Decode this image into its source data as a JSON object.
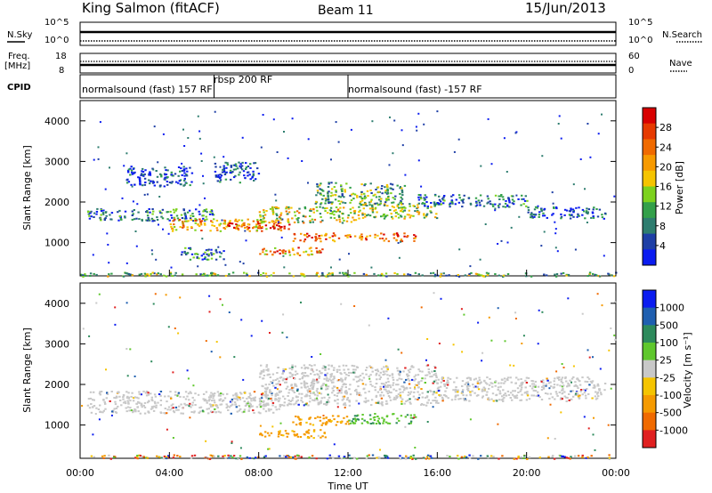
{
  "header": {
    "station": "King Salmon (fitACF)",
    "beam": "Beam 11",
    "date": "15/Jun/2013"
  },
  "side_labels": {
    "nsky": "N.Sky",
    "nsky_hi": "10^5",
    "nsky_lo": "10^0",
    "nsearch": "N.Search",
    "nsearch_hi": "10^5",
    "nsearch_lo": "10^0",
    "freq_line1": "Freq.",
    "freq_line2": "[MHz]",
    "freq_hi": "18",
    "freq_lo": "8",
    "nave": "Nave",
    "nave_hi": "60",
    "nave_lo": "0",
    "cpid": "CPID"
  },
  "cpid_segments": [
    {
      "label": "normalsound (fast) 157 RF",
      "start": "00:00"
    },
    {
      "label": "rbsp 200 RF",
      "start": "06:00"
    },
    {
      "label": "normalsound (fast) -157 RF",
      "start": "12:00"
    }
  ],
  "chart_data": [
    {
      "type": "heatmap",
      "panel": "power",
      "ylabel": "Slant Range [km]",
      "yticks": [
        1000,
        2000,
        3000,
        4000
      ],
      "ylim": [
        180,
        4500
      ],
      "xlim": [
        0,
        24
      ],
      "colorbar": {
        "label": "Power [dB]",
        "ticks": [
          "4",
          "8",
          "12",
          "16",
          "20",
          "24",
          "28"
        ],
        "colors": [
          "#0b1cf0",
          "#1e3fa6",
          "#2e7d6f",
          "#33a04a",
          "#7dd21e",
          "#f5c400",
          "#f79a00",
          "#f06a00",
          "#e63a00",
          "#d80000"
        ]
      },
      "regions": [
        {
          "x": [
            0,
            24
          ],
          "y": [
            180,
            280
          ],
          "value": 0.4,
          "note": "near-range band"
        },
        {
          "x": [
            0.3,
            6
          ],
          "y": [
            1550,
            1850
          ],
          "value": 0.25
        },
        {
          "x": [
            4,
            9
          ],
          "y": [
            1300,
            1600
          ],
          "value": 0.65
        },
        {
          "x": [
            6.5,
            9.5
          ],
          "y": [
            1350,
            1500
          ],
          "value": 0.9
        },
        {
          "x": [
            8,
            12.5
          ],
          "y": [
            1500,
            1900
          ],
          "value": 0.5
        },
        {
          "x": [
            10.5,
            14.5
          ],
          "y": [
            1950,
            2500
          ],
          "value": 0.35
        },
        {
          "x": [
            12.5,
            16
          ],
          "y": [
            1600,
            2000
          ],
          "value": 0.45
        },
        {
          "x": [
            15,
            20
          ],
          "y": [
            1900,
            2200
          ],
          "value": 0.2
        },
        {
          "x": [
            20,
            23.5
          ],
          "y": [
            1600,
            1900
          ],
          "value": 0.15
        },
        {
          "x": [
            9.5,
            15
          ],
          "y": [
            1050,
            1250
          ],
          "value": 0.75
        },
        {
          "x": [
            8,
            11
          ],
          "y": [
            700,
            900
          ],
          "value": 0.7
        },
        {
          "x": [
            4.5,
            6.5
          ],
          "y": [
            600,
            900
          ],
          "value": 0.25
        },
        {
          "x": [
            6,
            8
          ],
          "y": [
            2500,
            3000
          ],
          "value": 0.15
        },
        {
          "x": [
            2,
            5
          ],
          "y": [
            2400,
            2900
          ],
          "value": 0.1
        }
      ]
    },
    {
      "type": "heatmap",
      "panel": "velocity",
      "ylabel": "Slant Range [km]",
      "yticks": [
        1000,
        2000,
        3000,
        4000
      ],
      "ylim": [
        180,
        4500
      ],
      "xlim": [
        0,
        24
      ],
      "xticks": [
        "00:00",
        "04:00",
        "08:00",
        "12:00",
        "16:00",
        "20:00",
        "00:00"
      ],
      "xlabel": "Time UT",
      "colorbar": {
        "label": "Velocity [m s⁻¹]",
        "ticks": [
          "1000",
          "500",
          "100",
          "25",
          "-25",
          "-100",
          "-500",
          "-1000"
        ],
        "colors": [
          "#0b1cf0",
          "#1f5fb0",
          "#2d8a5c",
          "#5fc72d",
          "#c8c8c8",
          "#f5c400",
          "#f59a00",
          "#f06a00",
          "#e02020"
        ]
      },
      "regions": [
        {
          "x": [
            0,
            24
          ],
          "y": [
            180,
            280
          ],
          "value": "mixed"
        },
        {
          "x": [
            0.3,
            9
          ],
          "y": [
            1300,
            1850
          ],
          "value": "ground scatter (grey)"
        },
        {
          "x": [
            8,
            16
          ],
          "y": [
            1500,
            2500
          ],
          "value": "ground scatter (grey)"
        },
        {
          "x": [
            16,
            23.5
          ],
          "y": [
            1600,
            2200
          ],
          "value": "ground scatter (grey)"
        },
        {
          "x": [
            9.5,
            12
          ],
          "y": [
            1000,
            1250
          ],
          "value": "orange (-100 to -500)"
        },
        {
          "x": [
            12,
            15
          ],
          "y": [
            1050,
            1300
          ],
          "value": "green (+100)"
        },
        {
          "x": [
            8,
            11
          ],
          "y": [
            700,
            900
          ],
          "value": "orange (-100 to -500)"
        }
      ]
    }
  ]
}
